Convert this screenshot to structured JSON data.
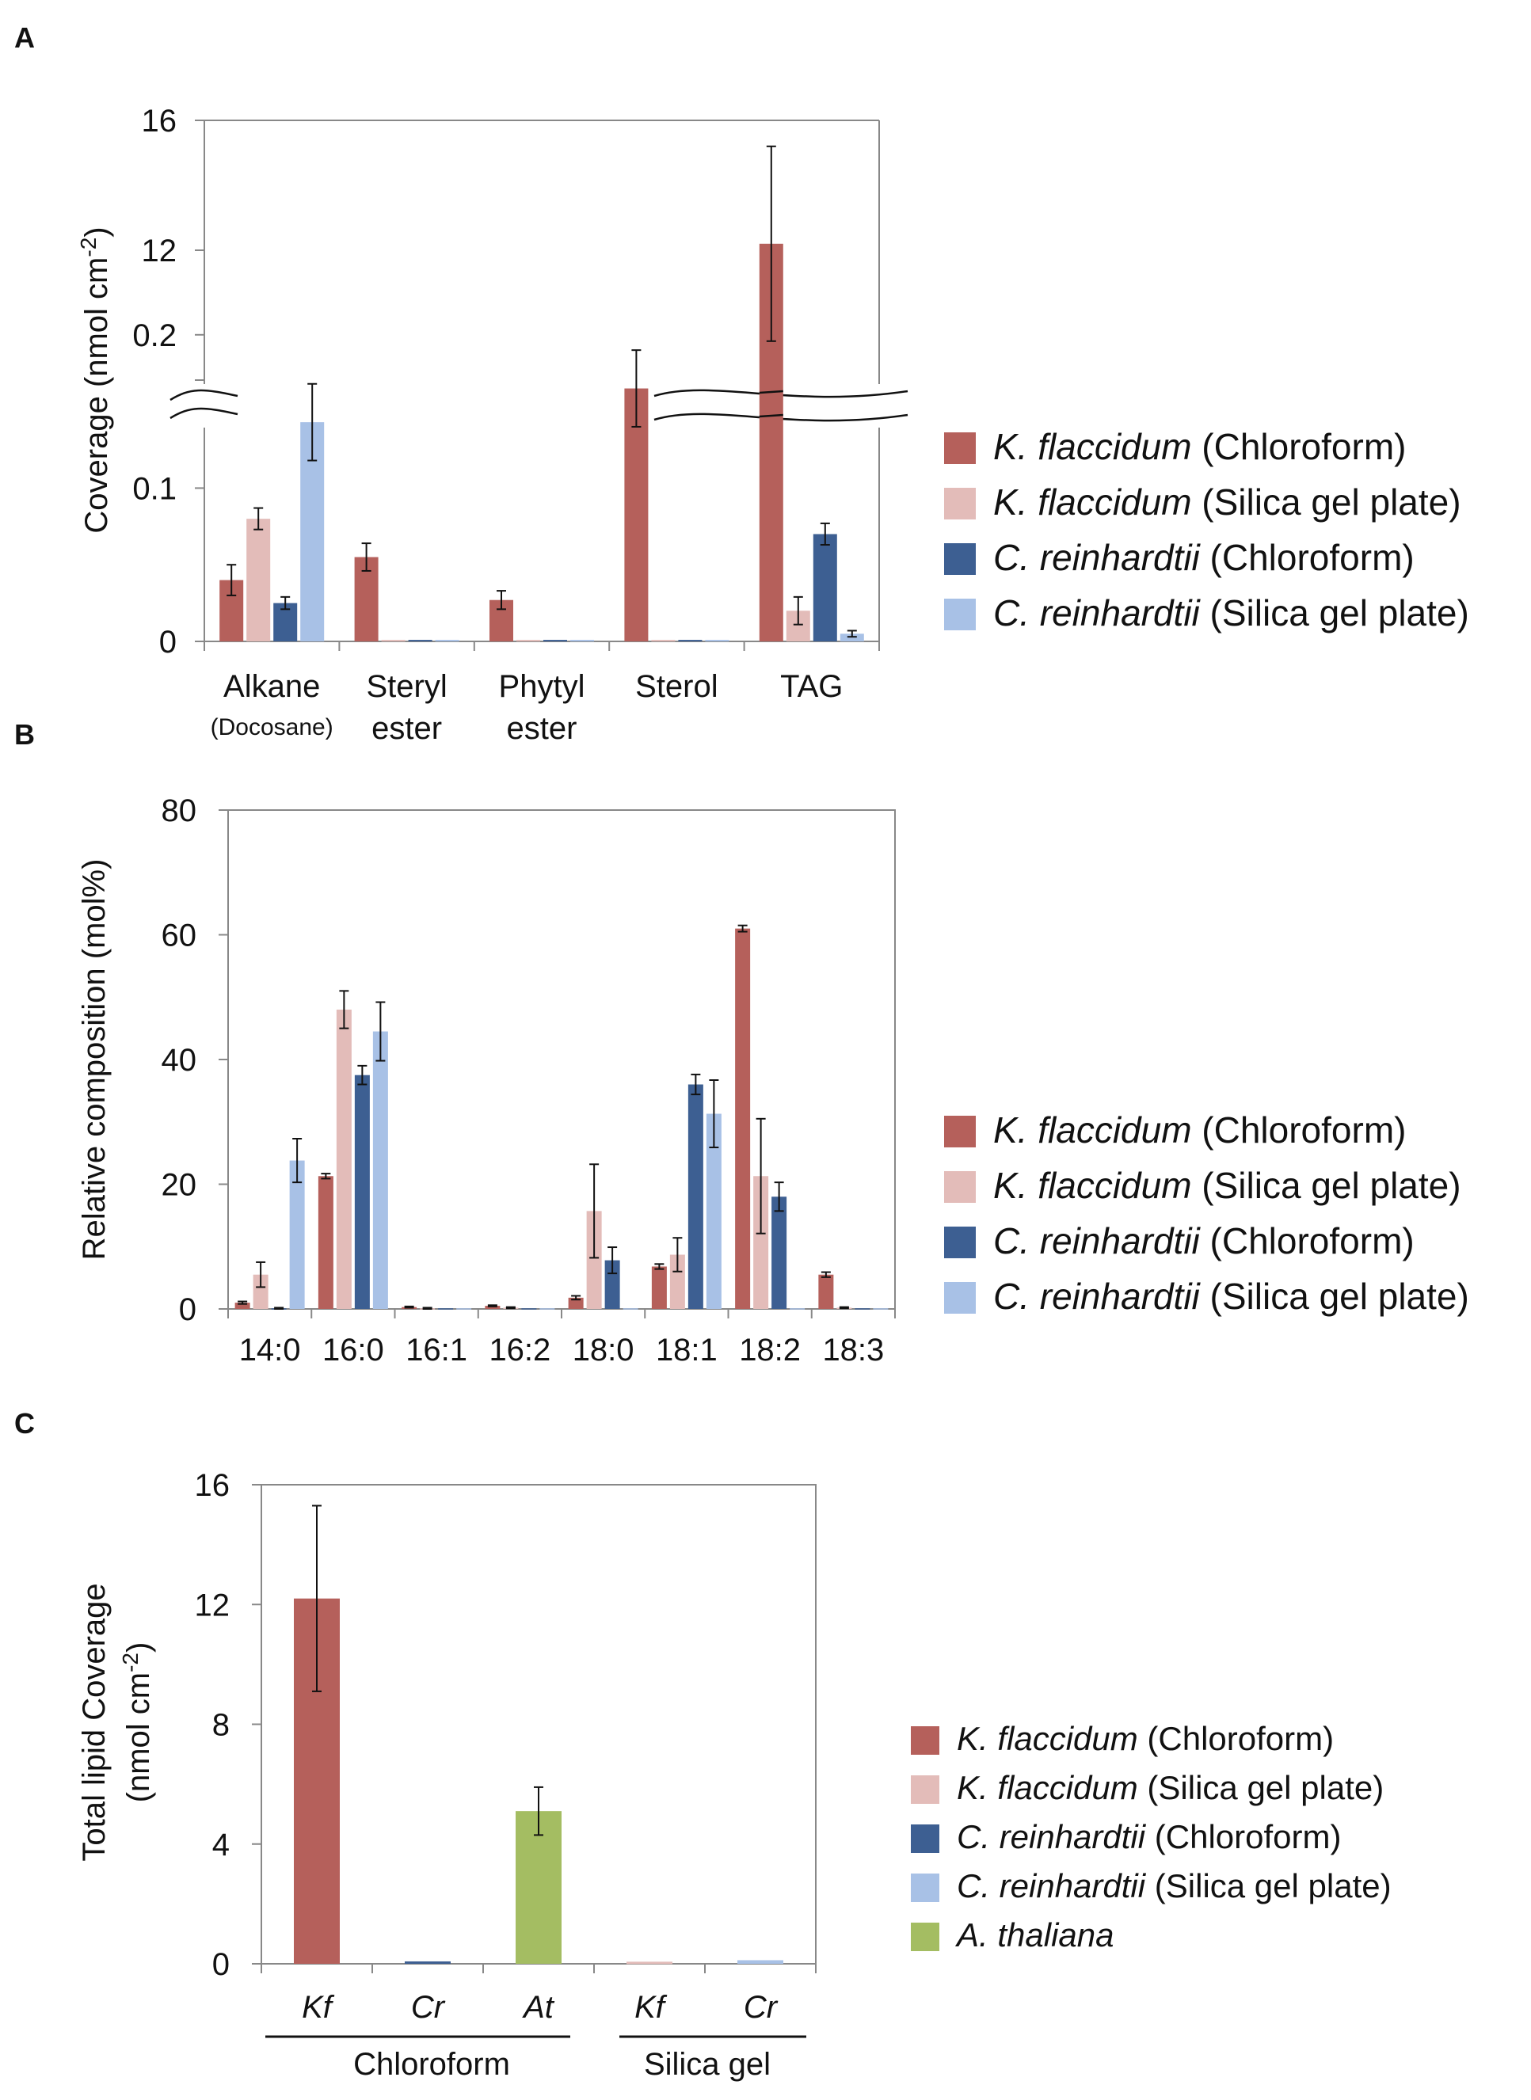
{
  "legend": {
    "entries": [
      {
        "species": "K. flaccidum",
        "method": "(Chloroform)",
        "color": "#b5605b"
      },
      {
        "species": "K. flaccidum",
        "method": "(Silica gel plate)",
        "color": "#e3bcb9"
      },
      {
        "species": "C. reinhardtii",
        "method": "(Chloroform)",
        "color": "#3d5f92"
      },
      {
        "species": "C. reinhardtii",
        "method": "(Silica gel plate)",
        "color": "#a8c1e6"
      }
    ],
    "extra": {
      "species": "A. thaliana",
      "method": "",
      "color": "#a4bd62"
    }
  },
  "chart_data": [
    {
      "panel": "A",
      "type": "bar",
      "ylabel": "Coverage (nmol cm-2)",
      "ylabel_parts": {
        "main": "Coverage (nmol cm",
        "sup": "-2",
        "end": ")"
      },
      "categories": [
        "Alkane",
        "Steryl ester",
        "Phytyl ester",
        "Sterol",
        "TAG"
      ],
      "category_lines": [
        [
          "Alkane"
        ],
        [
          "Steryl",
          "ester"
        ],
        [
          "Phytyl",
          "ester"
        ],
        [
          "Sterol"
        ],
        [
          "TAG"
        ]
      ],
      "category_sublabel": "(Docosane)",
      "broken_axis": true,
      "lower_range": [
        0,
        0.25
      ],
      "upper_range": [
        8,
        16
      ],
      "lower_ticks": [
        "0",
        "0.1",
        "0.2"
      ],
      "upper_ticks": [
        "12",
        "16"
      ],
      "series": [
        {
          "name": "K. flaccidum (Chloroform)",
          "values": [
            0.04,
            0.055,
            0.027,
            0.165,
            12.2
          ],
          "errors": [
            0.01,
            0.009,
            0.006,
            0.025,
            3.0
          ]
        },
        {
          "name": "K. flaccidum (Silica gel plate)",
          "values": [
            0.08,
            0.001,
            0.001,
            0.001,
            0.02
          ],
          "errors": [
            0.007,
            0,
            0,
            0,
            0.009
          ]
        },
        {
          "name": "C. reinhardtii (Chloroform)",
          "values": [
            0.025,
            0.001,
            0.001,
            0.001,
            0.07
          ],
          "errors": [
            0.004,
            0,
            0,
            0,
            0.007
          ]
        },
        {
          "name": "C. reinhardtii (Silica gel plate)",
          "values": [
            0.143,
            0.001,
            0.001,
            0.001,
            0.005
          ],
          "errors": [
            0.025,
            0,
            0,
            0,
            0.002
          ]
        }
      ]
    },
    {
      "panel": "B",
      "type": "bar",
      "ylabel": "Relative composition (mol%)",
      "categories": [
        "14:0",
        "16:0",
        "16:1",
        "16:2",
        "18:0",
        "18:1",
        "18:2",
        "18:3"
      ],
      "ylim": [
        0,
        80
      ],
      "yticks": [
        "0",
        "20",
        "40",
        "60",
        "80"
      ],
      "series": [
        {
          "name": "K. flaccidum (Chloroform)",
          "values": [
            1.0,
            21.3,
            0.3,
            0.5,
            1.8,
            6.8,
            61.0,
            5.5
          ],
          "errors": [
            0.2,
            0.4,
            0.1,
            0.1,
            0.3,
            0.4,
            0.5,
            0.4
          ]
        },
        {
          "name": "K. flaccidum (Silica gel plate)",
          "values": [
            5.5,
            48.0,
            0.1,
            0.2,
            15.7,
            8.7,
            21.3,
            0.2
          ],
          "errors": [
            2.0,
            3.0,
            0.1,
            0.1,
            7.5,
            2.7,
            9.2,
            0.1
          ]
        },
        {
          "name": "C. reinhardtii (Chloroform)",
          "values": [
            0.1,
            37.5,
            0.1,
            0.1,
            7.8,
            36.0,
            18.0,
            0.1
          ],
          "errors": [
            0.1,
            1.5,
            0,
            0,
            2.1,
            1.6,
            2.3,
            0
          ]
        },
        {
          "name": "C. reinhardtii (Silica gel plate)",
          "values": [
            23.8,
            44.5,
            0.1,
            0.1,
            0.1,
            31.3,
            0.1,
            0.1
          ],
          "errors": [
            3.5,
            4.7,
            0,
            0,
            0,
            5.4,
            0,
            0
          ]
        }
      ]
    },
    {
      "panel": "C",
      "type": "bar",
      "ylabel_line1": "Total lipid Coverage",
      "ylabel_line2_parts": {
        "main": "(nmol cm",
        "sup": "-2",
        "end": ")"
      },
      "ylim": [
        0,
        16
      ],
      "yticks": [
        "0",
        "4",
        "8",
        "12",
        "16"
      ],
      "categories": [
        "Kf",
        "Cr",
        "At",
        "Kf",
        "Cr"
      ],
      "groups": [
        "Chloroform",
        "Silica gel"
      ],
      "values": [
        12.2,
        0.08,
        5.1,
        0.07,
        0.12
      ],
      "errors": [
        3.1,
        0.02,
        0.8,
        0.02,
        0.03
      ],
      "colors": [
        "#b5605b",
        "#3d5f92",
        "#a4bd62",
        "#e3bcb9",
        "#a8c1e6"
      ]
    }
  ]
}
